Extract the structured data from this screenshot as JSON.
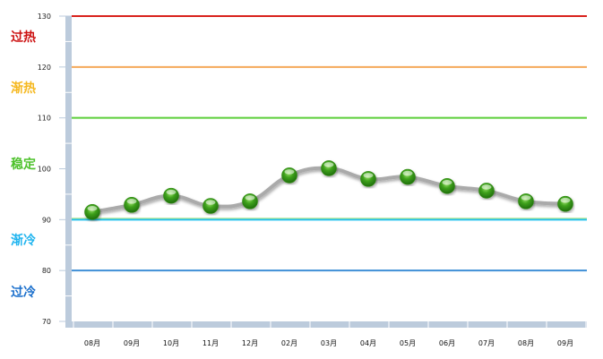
{
  "chart_data": {
    "type": "line",
    "title": "",
    "xlabel": "",
    "ylabel": "",
    "ylim": [
      70,
      130
    ],
    "yticks": [
      "70",
      "80",
      "90",
      "100",
      "110",
      "120",
      "130"
    ],
    "categories": [
      "08月",
      "09月",
      "10月",
      "11月",
      "12月",
      "02月",
      "03月",
      "04月",
      "05月",
      "06月",
      "07月",
      "08月",
      "09月"
    ],
    "values": [
      91.5,
      92.9,
      94.7,
      92.7,
      93.6,
      98.7,
      100.1,
      98.0,
      98.4,
      96.6,
      95.7,
      93.6,
      93.1
    ],
    "line_color": "#aaaaaa",
    "marker_color": "#3a9a1a",
    "grid": false,
    "threshold_lines": [
      {
        "value": 130,
        "color": "#d9221c"
      },
      {
        "value": 120,
        "color": "#f5a95a"
      },
      {
        "value": 110,
        "color": "#5ccf3a"
      },
      {
        "value": 90,
        "color": "#22c0ef"
      },
      {
        "value": 80,
        "color": "#3f8fd6"
      }
    ],
    "zones": [
      {
        "label": "过热",
        "color": "#cc1111"
      },
      {
        "label": "渐热",
        "color": "#f5b820"
      },
      {
        "label": "稳定",
        "color": "#4cc12a"
      },
      {
        "label": "渐冷",
        "color": "#1fb4ef"
      },
      {
        "label": "过冷",
        "color": "#1a6fcc"
      }
    ]
  }
}
